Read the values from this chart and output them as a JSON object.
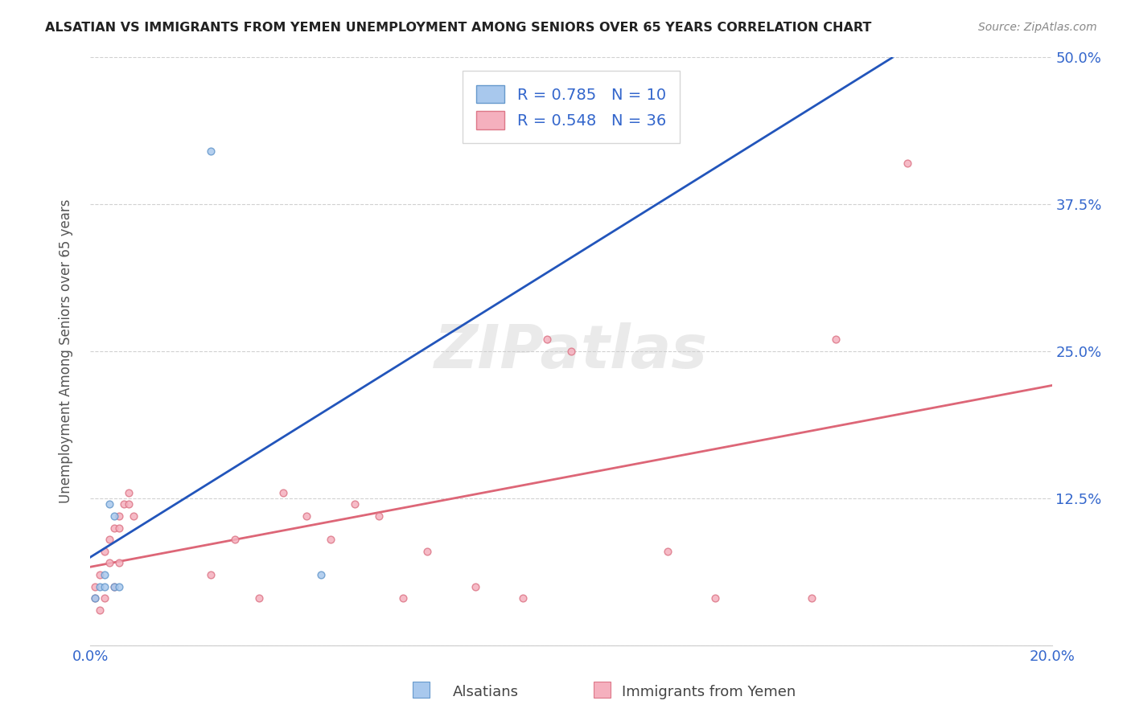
{
  "title": "ALSATIAN VS IMMIGRANTS FROM YEMEN UNEMPLOYMENT AMONG SENIORS OVER 65 YEARS CORRELATION CHART",
  "source": "Source: ZipAtlas.com",
  "ylabel": "Unemployment Among Seniors over 65 years",
  "xlim": [
    0.0,
    0.2
  ],
  "ylim": [
    0.0,
    0.5
  ],
  "alsatian_color": "#a8c8ed",
  "alsatian_edge": "#6699cc",
  "alsatian_line_color": "#2255bb",
  "alsatian_line_dash_color": "#99bbdd",
  "alsatian_R": 0.785,
  "alsatian_N": 10,
  "yemen_color": "#f5b0be",
  "yemen_edge": "#dd7788",
  "yemen_line_color": "#dd6677",
  "yemen_R": 0.548,
  "yemen_N": 36,
  "watermark": "ZIPatlas",
  "label_color": "#3366cc",
  "grid_color": "#cccccc",
  "alsatian_x": [
    0.001,
    0.002,
    0.003,
    0.003,
    0.004,
    0.005,
    0.005,
    0.006,
    0.025,
    0.048
  ],
  "alsatian_y": [
    0.04,
    0.05,
    0.06,
    0.05,
    0.12,
    0.11,
    0.05,
    0.05,
    0.42,
    0.06
  ],
  "alsatian_size": 40,
  "yemen_x": [
    0.001,
    0.001,
    0.002,
    0.002,
    0.003,
    0.003,
    0.004,
    0.004,
    0.005,
    0.005,
    0.006,
    0.006,
    0.006,
    0.007,
    0.008,
    0.008,
    0.009,
    0.025,
    0.03,
    0.035,
    0.04,
    0.045,
    0.05,
    0.055,
    0.06,
    0.065,
    0.07,
    0.08,
    0.09,
    0.095,
    0.1,
    0.12,
    0.13,
    0.15,
    0.155,
    0.17
  ],
  "yemen_y": [
    0.04,
    0.05,
    0.06,
    0.03,
    0.04,
    0.08,
    0.07,
    0.09,
    0.05,
    0.1,
    0.07,
    0.11,
    0.1,
    0.12,
    0.13,
    0.12,
    0.11,
    0.06,
    0.09,
    0.04,
    0.13,
    0.11,
    0.09,
    0.12,
    0.11,
    0.04,
    0.08,
    0.05,
    0.04,
    0.26,
    0.25,
    0.08,
    0.04,
    0.04,
    0.26,
    0.41
  ],
  "yemen_size": 40
}
